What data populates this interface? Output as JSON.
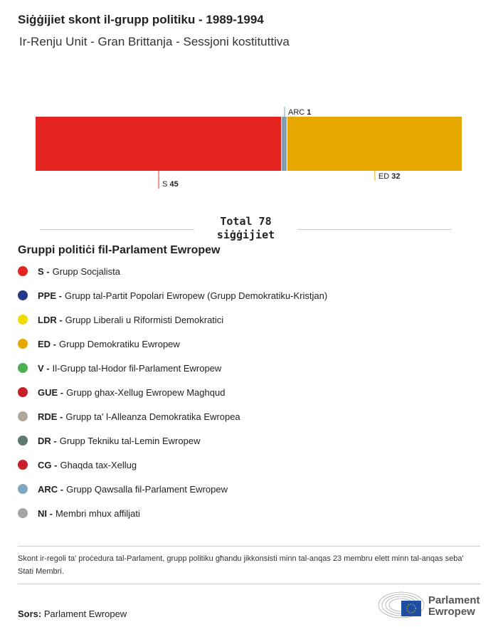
{
  "title": "Siġġijiet skont il-grupp politiku - 1989-1994",
  "subtitle": "Ir-Renju Unit - Gran Brittanja - Sessjoni kostituttiva",
  "chart_data": {
    "type": "bar",
    "orientation": "stacked-horizontal",
    "categories": [
      "S",
      "ARC",
      "ED"
    ],
    "values": [
      45,
      1,
      32
    ],
    "colors": [
      "#e52421",
      "#7f9cb0",
      "#e6a800"
    ],
    "total": 78,
    "label_positions": [
      "below",
      "above",
      "below"
    ]
  },
  "total_label": "Total 78",
  "total_unit": "siġġijiet",
  "legend": {
    "title": "Gruppi politiċi fil-Parlament Ewropew",
    "items": [
      {
        "code": "S -",
        "name": "Grupp Socjalista",
        "color": "#e52421"
      },
      {
        "code": "PPE -",
        "name": "Grupp tal-Partit Popolari Ewropew (Grupp Demokratiku-Kristjan)",
        "color": "#263b8a"
      },
      {
        "code": "LDR -",
        "name": "Grupp Liberali u Riformisti Demokratici",
        "color": "#f0dc00"
      },
      {
        "code": "ED -",
        "name": "Grupp Demokratiku Ewropew",
        "color": "#e6a800"
      },
      {
        "code": "V -",
        "name": "Il-Grupp tal-Hodor fil-Parlament Ewropew",
        "color": "#4caf50"
      },
      {
        "code": "GUE -",
        "name": "Grupp ghax-Xellug Ewropew Maghqud",
        "color": "#c8202a"
      },
      {
        "code": "RDE -",
        "name": "Grupp ta' l-Alleanza Demokratika Ewropea",
        "color": "#b0a69a"
      },
      {
        "code": "DR -",
        "name": "Grupp Tekniku tal-Lemin Ewropew",
        "color": "#5c7a6e"
      },
      {
        "code": "CG -",
        "name": "Ghaqda tax-Xellug",
        "color": "#c8202a"
      },
      {
        "code": "ARC -",
        "name": "Grupp Qawsalla fil-Parlament Ewropew",
        "color": "#7fa8c0"
      },
      {
        "code": "NI -",
        "name": "Membri mhux affiljati",
        "color": "#a6a6a6"
      }
    ]
  },
  "note": "Skont ir-regoli ta' proċedura tal-Parlament, grupp politiku għandu jikkonsisti minn tal-anqas 23 membru elett minn tal-anqas seba' Stati Membri.",
  "source": {
    "label": "Sors:",
    "value": "Parlament Ewropew"
  },
  "logo": {
    "line1": "Parlament",
    "line2": "Ewropew"
  }
}
